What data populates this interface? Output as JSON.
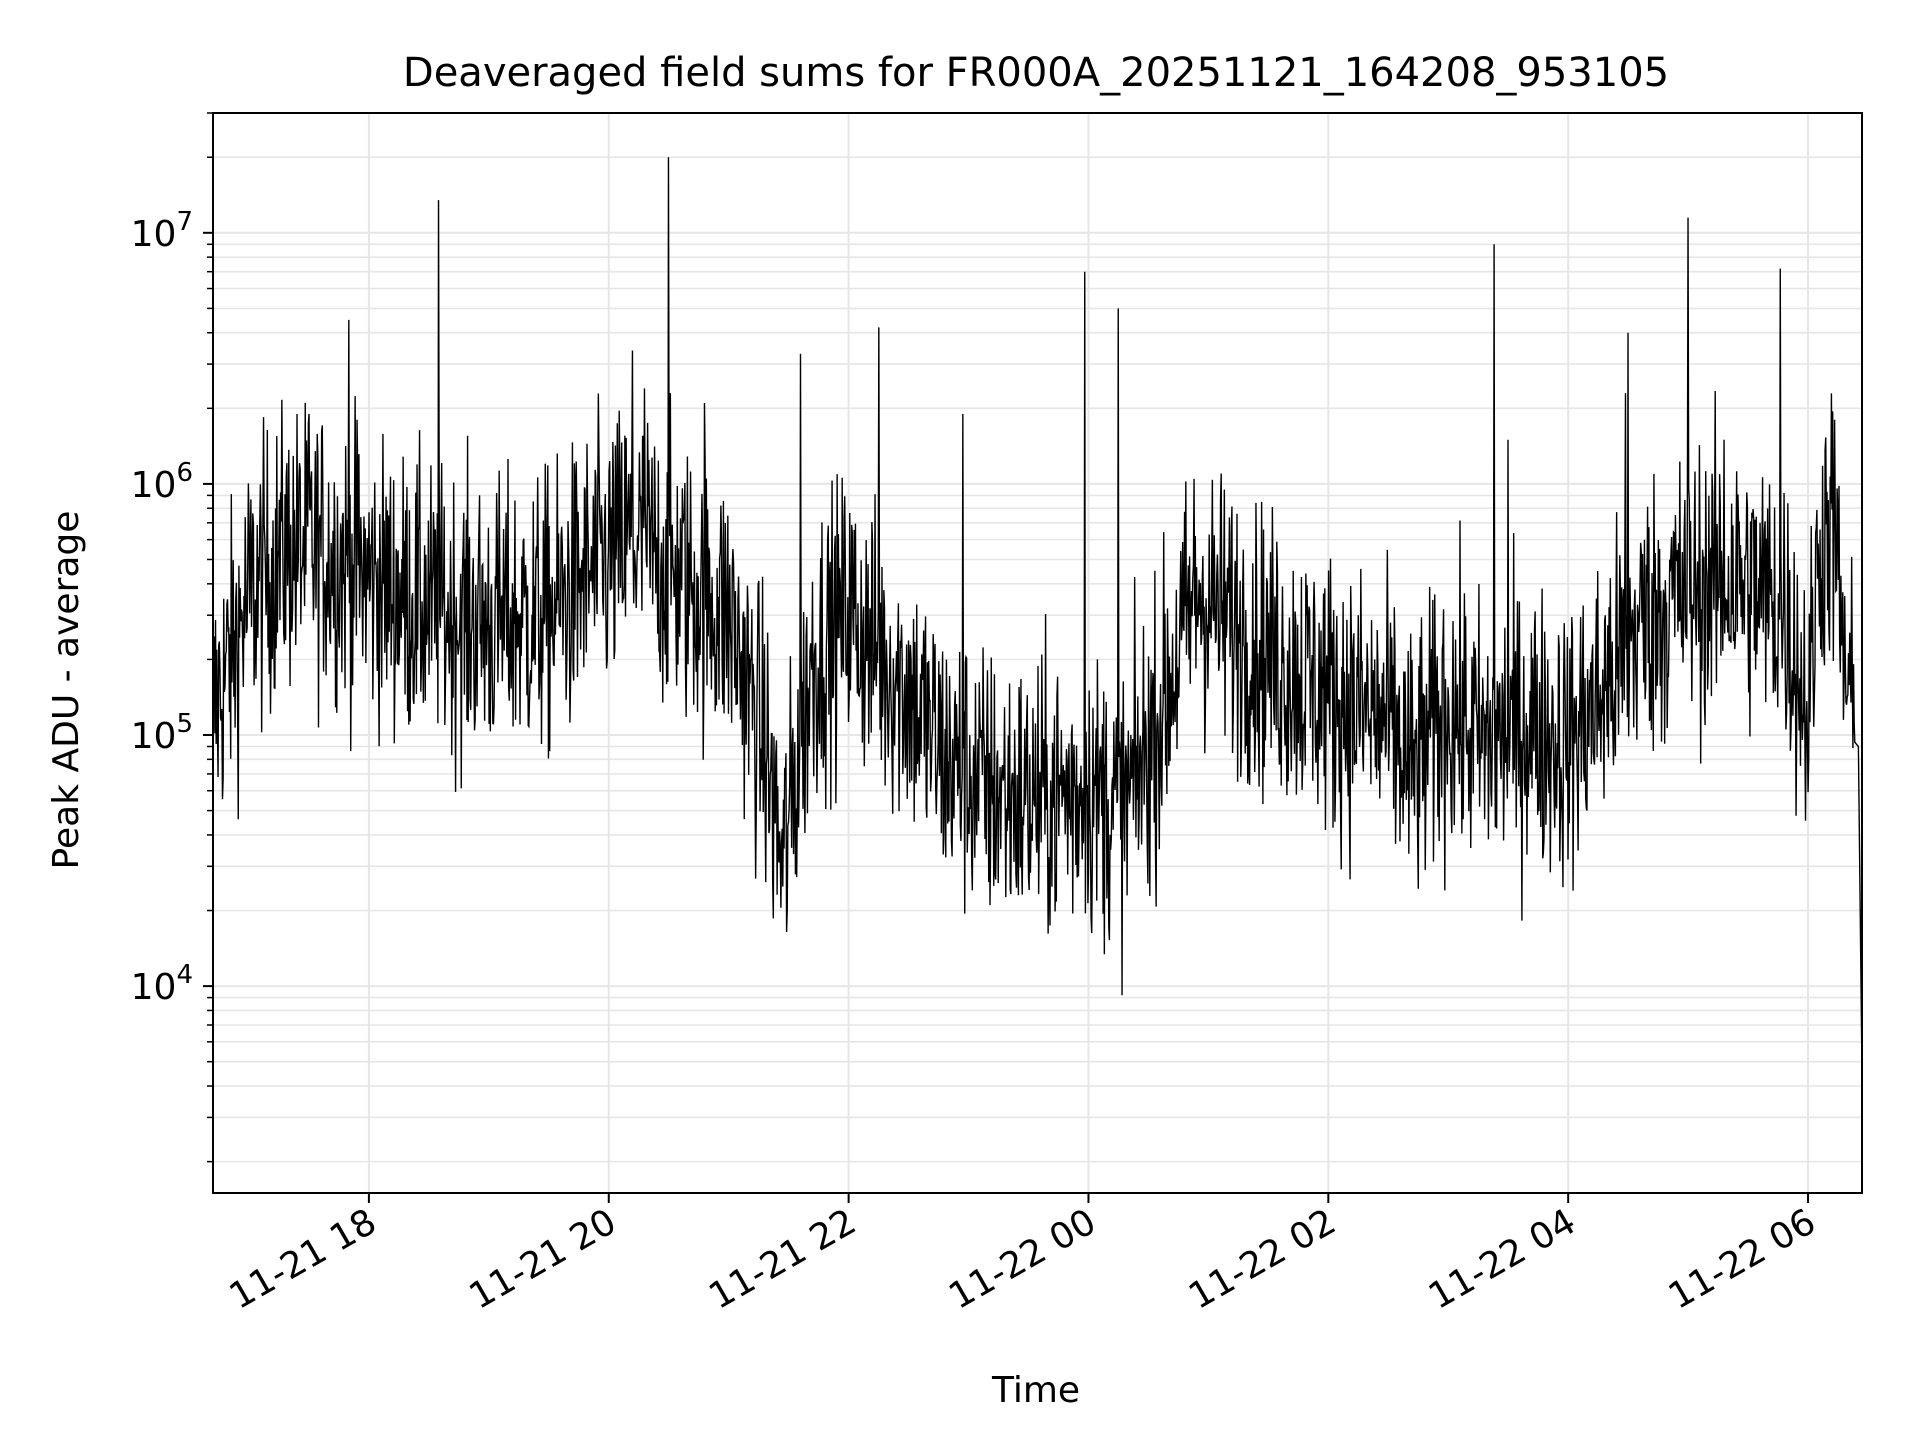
{
  "chart_data": {
    "type": "line",
    "title": "Deaveraged field sums for FR000A_20251121_164208_953105",
    "xlabel": "Time",
    "ylabel": "Peak ADU - average",
    "yscale": "log",
    "ylim": [
      1500,
      30000000
    ],
    "xlim_hours": [
      16.7,
      30.45
    ],
    "x_tick_labels": [
      "11-21 18",
      "11-21 20",
      "11-21 22",
      "11-22 00",
      "11-22 02",
      "11-22 04",
      "11-22 06"
    ],
    "x_tick_hours": [
      18,
      20,
      22,
      24,
      26,
      28,
      30
    ],
    "y_tick_labels": [
      {
        "base": "10",
        "exp": "4",
        "value": 10000
      },
      {
        "base": "10",
        "exp": "5",
        "value": 100000
      },
      {
        "base": "10",
        "exp": "6",
        "value": 1000000
      },
      {
        "base": "10",
        "exp": "7",
        "value": 10000000
      }
    ],
    "grid": true,
    "series": [
      {
        "name": "Peak ADU - average",
        "color": "#000000",
        "baseline_anchors": [
          [
            16.7,
            120000
          ],
          [
            17.0,
            350000
          ],
          [
            17.3,
            550000
          ],
          [
            17.6,
            550000
          ],
          [
            18.0,
            420000
          ],
          [
            18.5,
            320000
          ],
          [
            19.0,
            280000
          ],
          [
            19.5,
            300000
          ],
          [
            19.8,
            420000
          ],
          [
            20.2,
            600000
          ],
          [
            20.6,
            420000
          ],
          [
            21.0,
            300000
          ],
          [
            21.3,
            90000
          ],
          [
            21.45,
            30000
          ],
          [
            21.7,
            200000
          ],
          [
            22.0,
            320000
          ],
          [
            22.2,
            220000
          ],
          [
            22.5,
            150000
          ],
          [
            22.8,
            80000
          ],
          [
            23.2,
            60000
          ],
          [
            23.5,
            55000
          ],
          [
            24.0,
            60000
          ],
          [
            24.3,
            50000
          ],
          [
            24.6,
            120000
          ],
          [
            24.9,
            380000
          ],
          [
            25.3,
            250000
          ],
          [
            25.7,
            180000
          ],
          [
            26.2,
            130000
          ],
          [
            26.5,
            110000
          ],
          [
            26.7,
            70000
          ],
          [
            27.0,
            130000
          ],
          [
            27.3,
            90000
          ],
          [
            27.7,
            110000
          ],
          [
            28.0,
            90000
          ],
          [
            28.3,
            150000
          ],
          [
            28.6,
            280000
          ],
          [
            29.0,
            380000
          ],
          [
            29.4,
            420000
          ],
          [
            29.8,
            320000
          ],
          [
            30.0,
            120000
          ],
          [
            30.1,
            600000
          ],
          [
            30.2,
            700000
          ],
          [
            30.3,
            200000
          ],
          [
            30.38,
            110000
          ],
          [
            30.45,
            4500
          ]
        ],
        "spikes": [
          [
            17.5,
            1900000
          ],
          [
            17.83,
            4500000
          ],
          [
            17.9,
            1800000
          ],
          [
            18.58,
            13500000
          ],
          [
            20.2,
            3400000
          ],
          [
            20.3,
            2400000
          ],
          [
            20.5,
            20000000
          ],
          [
            20.8,
            2100000
          ],
          [
            21.6,
            3300000
          ],
          [
            22.25,
            4200000
          ],
          [
            22.95,
            1900000
          ],
          [
            23.97,
            7000000
          ],
          [
            24.25,
            5000000
          ],
          [
            27.38,
            9000000
          ],
          [
            27.5,
            1500000
          ],
          [
            28.48,
            2300000
          ],
          [
            28.5,
            4000000
          ],
          [
            29.0,
            11500000
          ],
          [
            29.3,
            1500000
          ],
          [
            29.77,
            7200000
          ],
          [
            30.22,
            1800000
          ]
        ]
      }
    ]
  }
}
